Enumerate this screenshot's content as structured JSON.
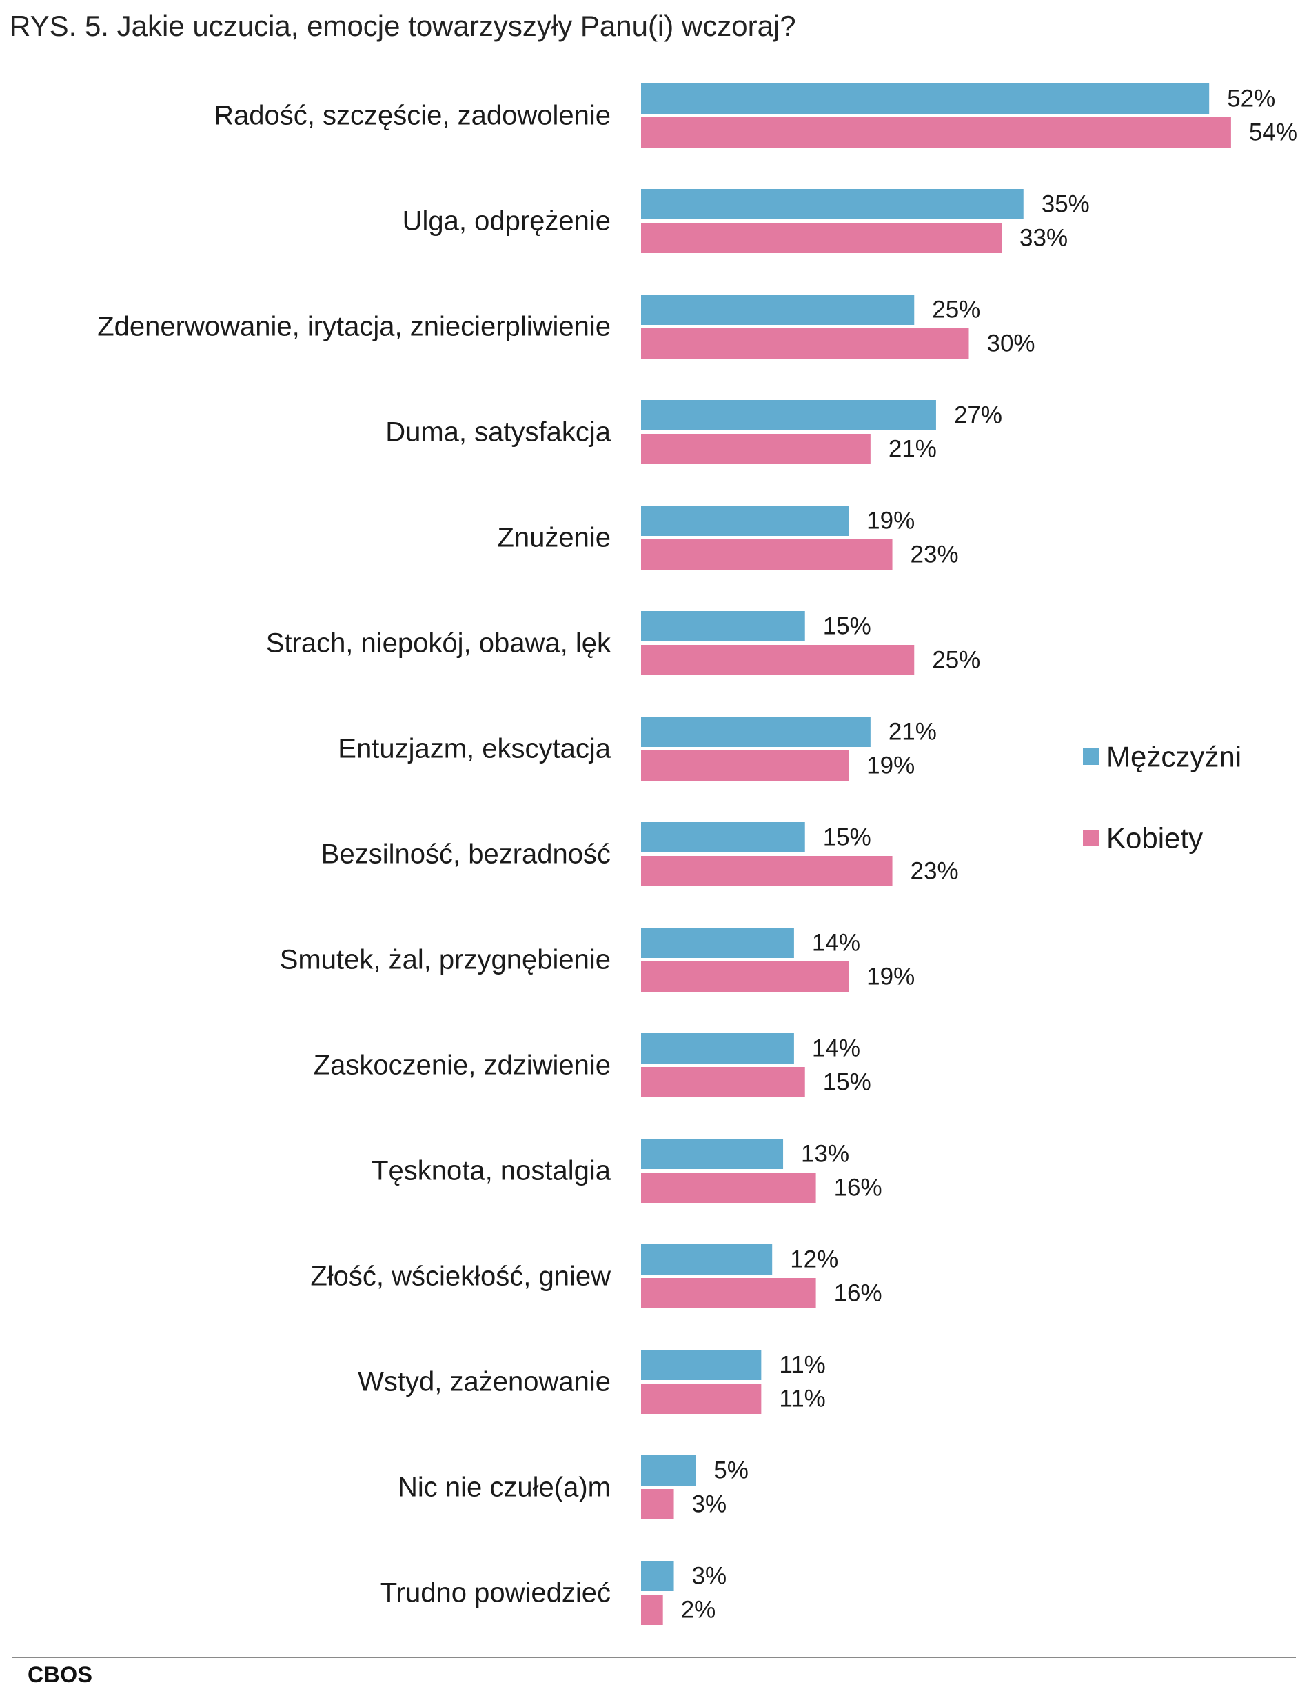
{
  "title": "RYS. 5. Jakie uczucia, emocje towarzyszyły Panu(i) wczoraj?",
  "source": "CBOS",
  "colors": {
    "men": "#62acd0",
    "women": "#e37aa0"
  },
  "chart_data": {
    "type": "bar",
    "orientation": "horizontal",
    "title": "RYS. 5. Jakie uczucia, emocje towarzyszyły Panu(i) wczoraj?",
    "categories": [
      "Radość, szczęście, zadowolenie",
      "Ulga, odprężenie",
      "Zdenerwowanie, irytacja, zniecierpliwienie",
      "Duma, satysfakcja",
      "Znużenie",
      "Strach, niepokój, obawa, lęk",
      "Entuzjazm, ekscytacja",
      "Bezsilność, bezradność",
      "Smutek, żal, przygnębienie",
      "Zaskoczenie, zdziwienie",
      "Tęsknota, nostalgia",
      "Złość, wściekłość, gniew",
      "Wstyd, zażenowanie",
      "Nic nie czułe(a)m",
      "Trudno powiedzieć"
    ],
    "series": [
      {
        "name": "Mężczyźni",
        "color": "#62acd0",
        "values": [
          52,
          35,
          25,
          27,
          19,
          15,
          21,
          15,
          14,
          14,
          13,
          12,
          11,
          5,
          3
        ]
      },
      {
        "name": "Kobiety",
        "color": "#e37aa0",
        "values": [
          54,
          33,
          30,
          21,
          23,
          25,
          19,
          23,
          19,
          15,
          16,
          16,
          11,
          3,
          2
        ]
      }
    ],
    "value_suffix": "%",
    "xlim": [
      0,
      60
    ],
    "grid": false,
    "legend_position": "right"
  }
}
